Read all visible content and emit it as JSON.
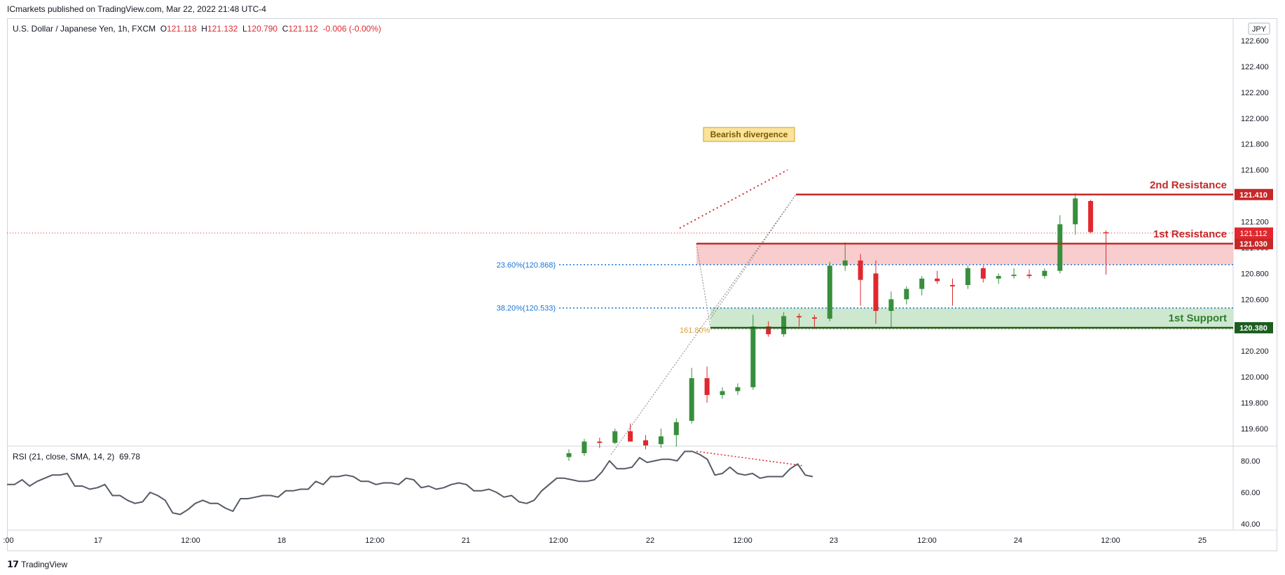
{
  "header": {
    "published": "ICmarkets published on TradingView.com, Mar 22, 2022 21:48 UTC-4"
  },
  "legend": {
    "symbol": "U.S. Dollar / Japanese Yen, 1h, FXCM",
    "o_label": "O",
    "o_value": "121.118",
    "h_label": "H",
    "h_value": "121.132",
    "l_label": "L",
    "l_value": "120.790",
    "c_label": "C",
    "c_value": "121.112",
    "change": "-0.006 (-0.00%)",
    "currency": "JPY"
  },
  "rsi_legend": {
    "text": "RSI (21, close, SMA, 14, 2)",
    "value": "69.78"
  },
  "footer": {
    "brand": "TradingView"
  },
  "colors": {
    "up": "#388e3c",
    "down": "#e0282e",
    "resistance": "#c62828",
    "support": "#1b5e20",
    "fib": "#1976d2",
    "rsi": "#555a66"
  },
  "chart_data": [
    {
      "type": "candlestick",
      "title": "U.S. Dollar / Japanese Yen, 1h, FXCM",
      "ylim": [
        119.5,
        122.72
      ],
      "y_ticks": [
        "122.600",
        "122.400",
        "122.200",
        "122.000",
        "121.800",
        "121.600",
        "121.400",
        "121.200",
        "121.000",
        "120.800",
        "120.600",
        "120.400",
        "120.200",
        "120.000",
        "119.800",
        "119.600"
      ],
      "x_ticks": [
        ":00",
        "17",
        "12:00",
        "18",
        "12:00",
        "21",
        "12:00",
        "22",
        "12:00",
        "23",
        "12:00",
        "24",
        "12:00",
        "25"
      ],
      "candles": [
        {
          "t": "22 02:00",
          "o": 119.38,
          "h": 119.44,
          "l": 119.35,
          "c": 119.41
        },
        {
          "t": "22 03:00",
          "o": 119.41,
          "h": 119.52,
          "l": 119.39,
          "c": 119.5
        },
        {
          "t": "22 04:00",
          "o": 119.5,
          "h": 119.53,
          "l": 119.45,
          "c": 119.49
        },
        {
          "t": "22 05:00",
          "o": 119.49,
          "h": 119.6,
          "l": 119.48,
          "c": 119.58
        },
        {
          "t": "22 06:00",
          "o": 119.58,
          "h": 119.64,
          "l": 119.52,
          "c": 119.5
        },
        {
          "t": "22 07:00",
          "o": 119.51,
          "h": 119.55,
          "l": 119.44,
          "c": 119.47
        },
        {
          "t": "22 08:00",
          "o": 119.48,
          "h": 119.6,
          "l": 119.45,
          "c": 119.54
        },
        {
          "t": "22 09:00",
          "o": 119.55,
          "h": 119.68,
          "l": 119.46,
          "c": 119.65
        },
        {
          "t": "22 10:00",
          "o": 119.66,
          "h": 120.07,
          "l": 119.64,
          "c": 119.99
        },
        {
          "t": "22 11:00",
          "o": 119.99,
          "h": 120.08,
          "l": 119.8,
          "c": 119.86
        },
        {
          "t": "22 12:00",
          "o": 119.86,
          "h": 119.92,
          "l": 119.83,
          "c": 119.89
        },
        {
          "t": "22 13:00",
          "o": 119.89,
          "h": 119.95,
          "l": 119.86,
          "c": 119.92
        },
        {
          "t": "22 14:00",
          "o": 119.92,
          "h": 120.48,
          "l": 119.9,
          "c": 120.39
        },
        {
          "t": "22 15:00",
          "o": 120.39,
          "h": 120.43,
          "l": 120.31,
          "c": 120.33
        },
        {
          "t": "22 16:00",
          "o": 120.33,
          "h": 120.5,
          "l": 120.31,
          "c": 120.47
        },
        {
          "t": "22 17:00",
          "o": 120.47,
          "h": 120.49,
          "l": 120.39,
          "c": 120.46
        },
        {
          "t": "22 18:00",
          "o": 120.46,
          "h": 120.48,
          "l": 120.37,
          "c": 120.45
        },
        {
          "t": "22 19:00",
          "o": 120.45,
          "h": 120.89,
          "l": 120.43,
          "c": 120.86
        },
        {
          "t": "22 20:00",
          "o": 120.86,
          "h": 121.04,
          "l": 120.82,
          "c": 120.9
        },
        {
          "t": "22 21:00",
          "o": 120.9,
          "h": 120.95,
          "l": 120.55,
          "c": 120.75
        },
        {
          "t": "22 22:00",
          "o": 120.8,
          "h": 120.9,
          "l": 120.41,
          "c": 120.51
        },
        {
          "t": "22 23:00",
          "o": 120.51,
          "h": 120.66,
          "l": 120.38,
          "c": 120.6
        },
        {
          "t": "23 00:00",
          "o": 120.6,
          "h": 120.7,
          "l": 120.56,
          "c": 120.68
        },
        {
          "t": "23 01:00",
          "o": 120.68,
          "h": 120.78,
          "l": 120.63,
          "c": 120.76
        },
        {
          "t": "23 02:00",
          "o": 120.76,
          "h": 120.82,
          "l": 120.72,
          "c": 120.74
        },
        {
          "t": "23 03:00",
          "o": 120.71,
          "h": 120.76,
          "l": 120.55,
          "c": 120.7
        },
        {
          "t": "23 04:00",
          "o": 120.71,
          "h": 120.86,
          "l": 120.68,
          "c": 120.84
        },
        {
          "t": "23 05:00",
          "o": 120.84,
          "h": 120.86,
          "l": 120.73,
          "c": 120.76
        },
        {
          "t": "23 06:00",
          "o": 120.76,
          "h": 120.8,
          "l": 120.72,
          "c": 120.78
        },
        {
          "t": "23 07:00",
          "o": 120.78,
          "h": 120.84,
          "l": 120.76,
          "c": 120.79
        },
        {
          "t": "23 08:00",
          "o": 120.79,
          "h": 120.83,
          "l": 120.76,
          "c": 120.78
        },
        {
          "t": "23 09:00",
          "o": 120.78,
          "h": 120.84,
          "l": 120.76,
          "c": 120.82
        },
        {
          "t": "23 10:00",
          "o": 120.82,
          "h": 121.25,
          "l": 120.8,
          "c": 121.18
        },
        {
          "t": "23 11:00",
          "o": 121.18,
          "h": 121.42,
          "l": 121.1,
          "c": 121.38
        },
        {
          "t": "23 12:00",
          "o": 121.36,
          "h": 121.37,
          "l": 121.11,
          "c": 121.12
        },
        {
          "t": "23 13:00",
          "o": 121.118,
          "h": 121.132,
          "l": 120.79,
          "c": 121.112
        }
      ],
      "levels": [
        {
          "label": "2nd Resistance",
          "value": 121.41,
          "tag": "121.410"
        },
        {
          "label": "1st Resistance",
          "value": 121.03,
          "tag": "121.030"
        },
        {
          "label": "1st Support",
          "value": 120.38,
          "tag": "120.380"
        }
      ],
      "last_price_tag": "121.112",
      "fib_levels": [
        {
          "label": "23.60%(120.868)",
          "value": 120.868
        },
        {
          "label": "38.20%(120.533)",
          "value": 120.533
        },
        {
          "label": "161.80%",
          "value": 120.38
        }
      ],
      "annotations": [
        {
          "text": "Bearish divergence"
        }
      ]
    },
    {
      "type": "line",
      "title": "RSI (21, close, SMA, 14, 2)",
      "ylim": [
        36,
        88
      ],
      "y_ticks": [
        "80.00",
        "60.00",
        "40.00"
      ],
      "series": [
        {
          "values": [
            65,
            65,
            68,
            64,
            67,
            69,
            71,
            71,
            72,
            64,
            64,
            62,
            63,
            65,
            58,
            58,
            55,
            53,
            54,
            60,
            58,
            55,
            47,
            46,
            49,
            53,
            55,
            53,
            53,
            50,
            48,
            56,
            56,
            57,
            58,
            58,
            57,
            61,
            61,
            62,
            62,
            67,
            65,
            70,
            70,
            71,
            70,
            67,
            67,
            65,
            66,
            66,
            65,
            69,
            68,
            63,
            64,
            62,
            63,
            65,
            66,
            65,
            61,
            61,
            62,
            60,
            57,
            58,
            54,
            53,
            55,
            61,
            65,
            69,
            69,
            68,
            67,
            67,
            68,
            73,
            80,
            75,
            75,
            76,
            82,
            79,
            80,
            81,
            81,
            80,
            86,
            86,
            84,
            81,
            71,
            72,
            76,
            72,
            71,
            72,
            69,
            70,
            70,
            70,
            75,
            78,
            71,
            70
          ]
        }
      ]
    }
  ]
}
